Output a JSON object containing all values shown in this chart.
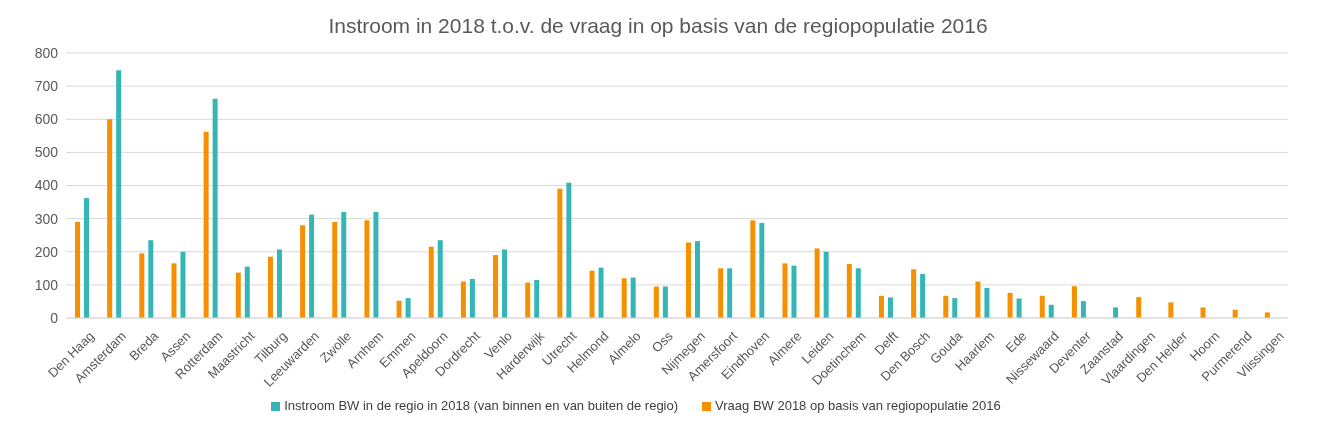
{
  "chart_data": {
    "type": "bar",
    "title": "Instroom in 2018 t.o.v. de vraag in op basis van de regiopopulatie 2016",
    "categories": [
      "Den Haag",
      "Amsterdam",
      "Breda",
      "Assen",
      "Rotterdam",
      "Maastricht",
      "Tilburg",
      "Leeuwarden",
      "Zwolle",
      "Arnhem",
      "Emmen",
      "Apeldoorn",
      "Dordrecht",
      "Venlo",
      "Harderwijk",
      "Utrecht",
      "Helmond",
      "Almelo",
      "Oss",
      "Nijmegen",
      "Amersfoort",
      "Eindhoven",
      "Almere",
      "Leiden",
      "Doetinchem",
      "Delft",
      "Den Bosch",
      "Gouda",
      "Haarlem",
      "Ede",
      "Nissewaard",
      "Deventer",
      "Zaanstad",
      "Vlaardingen",
      "Den Helder",
      "Hoorn",
      "Purmerend",
      "Vlissingen"
    ],
    "series": [
      {
        "name": "Vraag BW 2018 op basis van regiopopulatie 2016",
        "color": "#f59100",
        "values": [
          290,
          600,
          195,
          165,
          562,
          137,
          185,
          280,
          290,
          295,
          52,
          215,
          110,
          190,
          107,
          390,
          143,
          120,
          95,
          228,
          150,
          295,
          165,
          210,
          163,
          67,
          147,
          67,
          110,
          76,
          67,
          96,
          null,
          63,
          47,
          32,
          25,
          17
        ]
      },
      {
        "name": "Instroom BW in de regio in 2018 (van binnen en van buiten de regio)",
        "color": "#35b6b4",
        "values": [
          362,
          748,
          235,
          200,
          662,
          155,
          207,
          312,
          320,
          320,
          60,
          235,
          118,
          207,
          115,
          408,
          152,
          122,
          95,
          232,
          150,
          287,
          158,
          200,
          150,
          62,
          133,
          60,
          91,
          59,
          40,
          51,
          32,
          null,
          null,
          null,
          null,
          null
        ]
      }
    ],
    "ylim": [
      0,
      800
    ],
    "yticks": [
      0,
      100,
      200,
      300,
      400,
      500,
      600,
      700,
      800
    ],
    "grid": "y",
    "legend": "bottom"
  }
}
